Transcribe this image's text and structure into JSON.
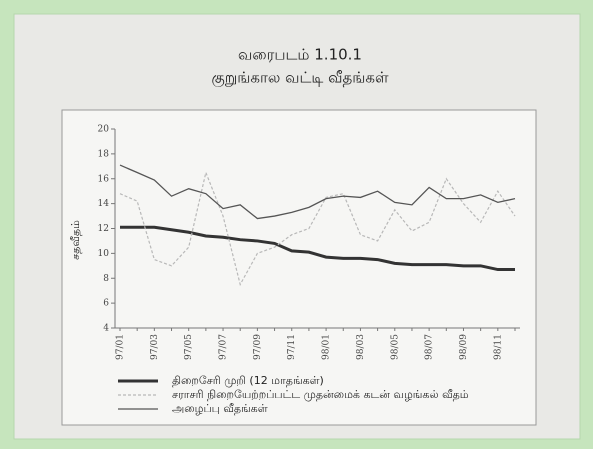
{
  "chart_data": {
    "type": "line",
    "title": "வரைபடம் 1.10.1",
    "subtitle": "குறுங்கால வட்டி வீதங்கள்",
    "y_label": "சதவீதம்",
    "categories": [
      "97/01",
      null,
      "97/03",
      null,
      "97/05",
      null,
      "97/07",
      null,
      "97/09",
      null,
      "97/11",
      null,
      "98/01",
      null,
      "98/03",
      null,
      "98/05",
      null,
      "98/07",
      null,
      "98/09",
      null,
      "98/11",
      null
    ],
    "series": [
      {
        "name": "திறைசேரி முறி  (12 மாதங்கள்)",
        "color": "#333333",
        "values": [
          12.1,
          12.1,
          12.1,
          11.9,
          11.7,
          11.4,
          11.3,
          11.1,
          11.0,
          10.8,
          10.2,
          10.1,
          9.7,
          9.6,
          9.6,
          9.5,
          9.2,
          9.1,
          9.1,
          9.1,
          9.0,
          9.0,
          8.7,
          8.7
        ]
      },
      {
        "name": "சராசரி நிறையேற்றப்பட்ட முதன்மைக் கடன் வழங்கல் வீதம்",
        "color": "#b8b8b8",
        "values": [
          14.8,
          14.2,
          9.5,
          9.0,
          10.5,
          16.5,
          13.0,
          7.5,
          10.0,
          10.5,
          11.5,
          12.0,
          14.5,
          14.8,
          11.5,
          11.0,
          13.5,
          11.8,
          12.5,
          16.0,
          14.0,
          12.5,
          15.0,
          13.0
        ]
      },
      {
        "name": "அழைப்பு வீதங்கள்",
        "color": "#555555",
        "values": [
          17.1,
          16.5,
          15.9,
          14.6,
          15.2,
          14.8,
          13.6,
          13.9,
          12.8,
          13.0,
          13.3,
          13.7,
          14.4,
          14.6,
          14.5,
          15.0,
          14.1,
          13.9,
          15.3,
          14.4,
          14.4,
          14.7,
          14.1,
          14.4
        ]
      }
    ],
    "ylim": [
      4,
      20
    ],
    "yticks": [
      4,
      6,
      8,
      10,
      12,
      14,
      16,
      18,
      20
    ]
  }
}
